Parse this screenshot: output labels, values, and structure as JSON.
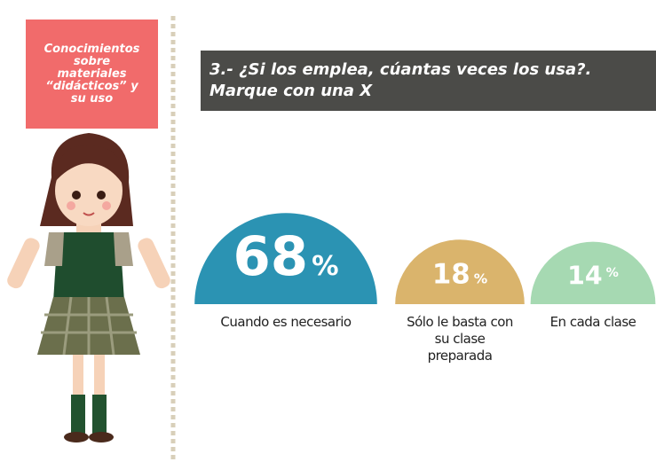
{
  "side_label": "Conocimientos sobre materiales “didácticos” y su uso",
  "chart_data": {
    "type": "semicircle",
    "title": "3.- ¿Si los emplea, cúantas veces los usa?. Marque con una X",
    "categories": [
      "Cuando es necesario",
      "Sólo le basta con su clase preparada",
      "En cada clase"
    ],
    "values": [
      68,
      18,
      14
    ],
    "unit": "%",
    "colors": [
      "#2b93b3",
      "#dab46c",
      "#a6d9b2"
    ]
  }
}
